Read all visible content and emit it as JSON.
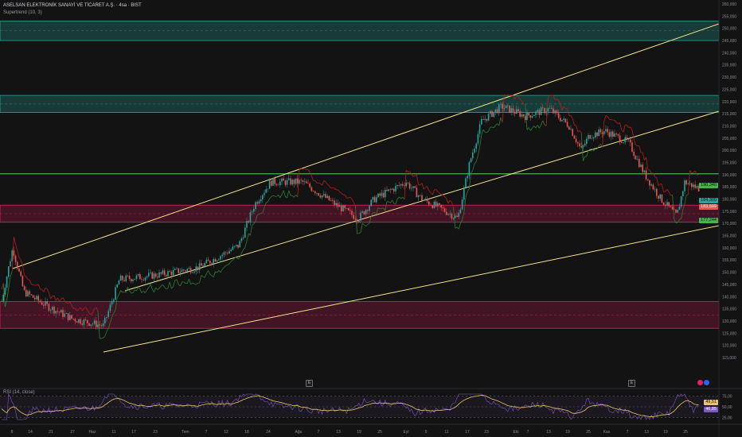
{
  "header": {
    "symbol_line": "ASELSAN ELEKTRONİK SANAYİ VE TİCARET A.Ş. · 4sa · BIST",
    "indicator_line": "Supertrend (10, 3)"
  },
  "rsi": {
    "label": "RSI (14, close)",
    "levels": [
      "75,00",
      "50,00",
      "25,00"
    ],
    "value_yellow": "49,51",
    "value_purple": "46,85"
  },
  "price_labels": {
    "green_level": "190,340",
    "last_teal": "184,300",
    "red": "183,599",
    "green_low": "177,244"
  },
  "y_axis": [
    "260,000",
    "255,000",
    "250,000",
    "245,000",
    "240,000",
    "235,000",
    "230,000",
    "225,000",
    "220,000",
    "215,000",
    "210,000",
    "205,000",
    "200,000",
    "195,000",
    "190,000",
    "185,000",
    "180,000",
    "175,000",
    "170,000",
    "165,000",
    "160,000",
    "155,000",
    "150,000",
    "145,000",
    "140,000",
    "135,000",
    "130,000",
    "125,000",
    "120,000",
    "115,000"
  ],
  "x_axis": [
    "8",
    "14",
    "21",
    "27",
    "Haz",
    "11",
    "17",
    "23",
    "Tem",
    "7",
    "12",
    "18",
    "24",
    "Ağu",
    "7",
    "13",
    "19",
    "25",
    "Eyl",
    "5",
    "11",
    "17",
    "23",
    "Eki",
    "7",
    "13",
    "19",
    "25",
    "Kas",
    "7",
    "13",
    "19",
    "25"
  ],
  "events": [
    "E",
    "E"
  ],
  "colors": {
    "bg": "#131313",
    "teal_zone": "#26a69a",
    "pink_zone": "#e91e63",
    "channel": "#f0e68c",
    "green_line": "#4caf50",
    "bull": "#26a69a",
    "bear": "#ef5350",
    "rsi_line": "#7e57c2",
    "rsi_ma": "#e9c46a"
  },
  "chart_data": {
    "type": "candlestick",
    "ylim": [
      115,
      260
    ],
    "key_levels": [
      190.34,
      184.3,
      183.599,
      177.244
    ],
    "zones": [
      {
        "from": 245,
        "to": 253,
        "color": "teal"
      },
      {
        "from": 215.5,
        "to": 222.5,
        "color": "teal"
      },
      {
        "from": 170.5,
        "to": 177.5,
        "color": "pink"
      },
      {
        "from": 127,
        "to": 138,
        "color": "pink"
      }
    ]
  }
}
